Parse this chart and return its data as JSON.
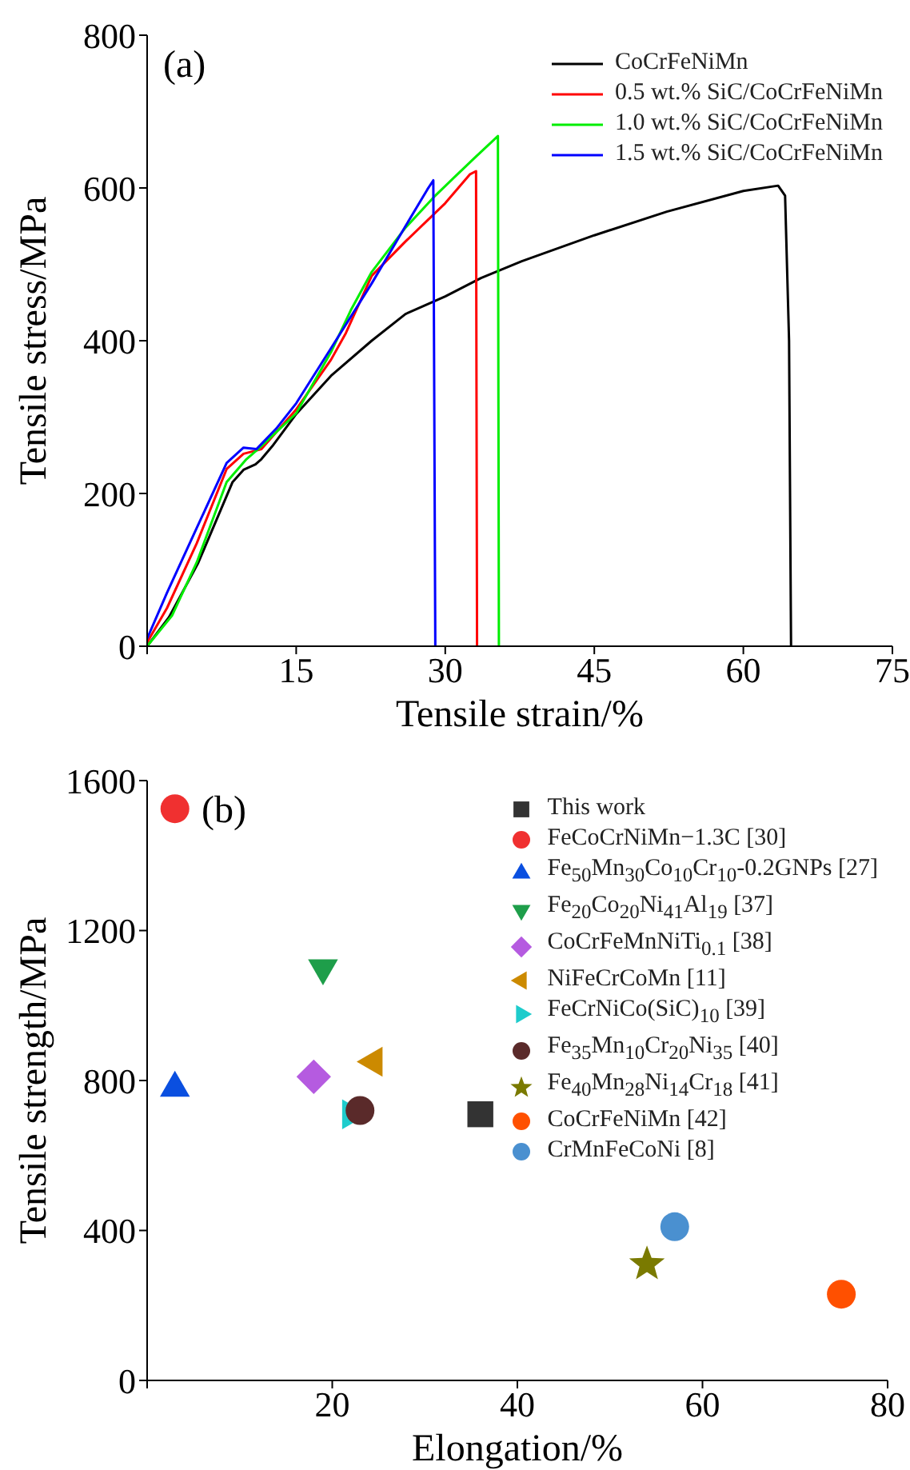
{
  "chart_data": [
    {
      "type": "line",
      "title": "(a)",
      "xlabel": "Tensile strain/%",
      "ylabel": "Tensile stress/MPa",
      "xlim": [
        0,
        75
      ],
      "ylim": [
        0,
        800
      ],
      "xticks": [
        {
          "value": 0,
          "label": null
        },
        15,
        30,
        45,
        60,
        75
      ],
      "yticks": [
        0,
        200,
        400,
        600,
        800
      ],
      "grid": false,
      "legend": "top right",
      "marker": "none",
      "line_style": "solid",
      "series": [
        {
          "name": "CoCrFeNiMn",
          "color": "#000000",
          "x": [
            0,
            2.2,
            5.1,
            8.6,
            9.7,
            10.9,
            11.5,
            12.6,
            15,
            18.5,
            22.6,
            26,
            30,
            33.6,
            37.7,
            45,
            52.3,
            60,
            63.5,
            64.2,
            64.6,
            64.8
          ],
          "values": [
            0,
            38,
            108,
            215,
            231,
            238,
            245,
            262,
            304,
            354,
            400,
            435,
            458,
            482,
            504,
            538,
            569,
            596,
            603,
            590,
            400,
            0
          ]
        },
        {
          "name": "0.5 wt.% SiC/CoCrFeNiMn",
          "color": "#ff0000",
          "x": [
            0,
            2,
            5,
            8,
            9.7,
            11.5,
            15,
            18.5,
            20,
            22.6,
            26,
            30,
            32.5,
            33.1,
            33.2
          ],
          "values": [
            5,
            50,
            135,
            232,
            252,
            258,
            310,
            375,
            410,
            485,
            530,
            580,
            618,
            622,
            0
          ]
        },
        {
          "name": "1.0 wt.% SiC/CoCrFeNiMn",
          "color": "#00ee00",
          "x": [
            0,
            2.5,
            5,
            8,
            10,
            11.5,
            15,
            18.5,
            20.5,
            22.6,
            26,
            29,
            31,
            33,
            35.3,
            35.4
          ],
          "values": [
            0,
            40,
            110,
            215,
            245,
            262,
            305,
            385,
            440,
            490,
            548,
            590,
            615,
            640,
            668,
            0
          ]
        },
        {
          "name": "1.5 wt.% SiC/CoCrFeNiMn",
          "color": "#0000ff",
          "x": [
            0,
            2,
            5,
            8,
            9.7,
            11,
            13,
            15,
            18.5,
            22.6,
            26,
            28.2,
            28.8,
            29
          ],
          "values": [
            10,
            70,
            155,
            240,
            260,
            258,
            285,
            318,
            390,
            475,
            550,
            598,
            610,
            0
          ]
        }
      ]
    },
    {
      "type": "scatter",
      "title": "(b)",
      "xlabel": "Elongation/%",
      "ylabel": "Tensile strength/MPa",
      "xlim": [
        0,
        80
      ],
      "ylim": [
        0,
        1600
      ],
      "xticks": [
        {
          "value": 0,
          "label": null
        },
        20,
        40,
        60,
        80
      ],
      "yticks": [
        0,
        400,
        800,
        1200,
        1600
      ],
      "grid": false,
      "legend": "top right",
      "series": [
        {
          "name": "This work",
          "color": "#333333",
          "marker": "square",
          "x": [
            36
          ],
          "values": [
            710
          ]
        },
        {
          "name": "FeCoCrNiMn−1.3C [30]",
          "color": "#f03030",
          "marker": "circle",
          "x": [
            3
          ],
          "values": [
            1525
          ]
        },
        {
          "name": "Fe$_{50}$Mn$_{30}$Co$_{10}$Cr$_{10}$-0.2GNPs [27]",
          "color": "#0a4fe0",
          "marker": "triangle",
          "x": [
            3
          ],
          "values": [
            780
          ]
        },
        {
          "name": "Fe$_{20}$Co$_{20}$Ni$_{41}$Al$_{19}$ [37]",
          "color": "#1e9e4a",
          "marker": "triangle-down",
          "x": [
            19
          ],
          "values": [
            1100
          ]
        },
        {
          "name": "CoCrFeMnNiTi$_{0.1}$ [38]",
          "color": "#b55be0",
          "marker": "diamond",
          "x": [
            18
          ],
          "values": [
            810
          ]
        },
        {
          "name": "NiFeCrCoMn [11]",
          "color": "#cc8a00",
          "marker": "triangle-left",
          "x": [
            24.5
          ],
          "values": [
            850
          ]
        },
        {
          "name": "FeCrNiCo(SiC)$_{10}$ [39]",
          "color": "#1ecccc",
          "marker": "triangle-right",
          "x": [
            22
          ],
          "values": [
            710
          ]
        },
        {
          "name": "Fe$_{35}$Mn$_{10}$Cr$_{20}$Ni$_{35}$ [40]",
          "color": "#5a2a2a",
          "x": [
            23
          ],
          "values": [
            720
          ]
        },
        {
          "name": "Fe$_{40}$Mn$_{28}$Ni$_{14}$Cr$_{18}$ [41]",
          "color": "#7a7a00",
          "marker": "star",
          "x": [
            54
          ],
          "values": [
            310
          ]
        },
        {
          "name": "CoCrFeNiMn [42]",
          "color": "#ff5000",
          "x": [
            75
          ],
          "values": [
            230
          ]
        },
        {
          "name": "CrMnFeCoNi [8]",
          "color": "#4a90d0",
          "marker": "circle",
          "x": [
            57
          ],
          "values": [
            410
          ]
        }
      ]
    }
  ]
}
